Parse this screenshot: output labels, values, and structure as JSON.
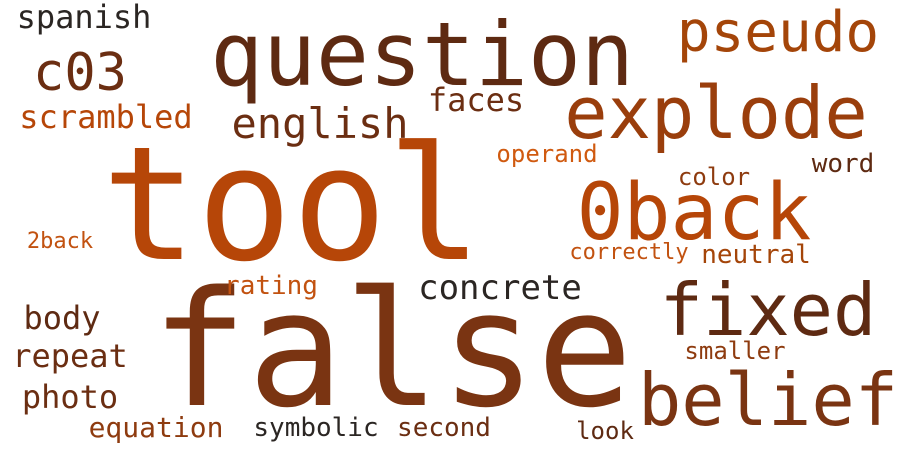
{
  "palette": {
    "background": "#ffffff",
    "dark_brown": "#5e2a12",
    "brown": "#7a3412",
    "rust": "#8e3b0f",
    "orange": "#b64608",
    "charcoal": "#2b2623"
  },
  "words": [
    {
      "text": "false",
      "color": "#7a3412"
    },
    {
      "text": "tool",
      "color": "#b64608"
    },
    {
      "text": "question",
      "color": "#5e2a12"
    },
    {
      "text": "0back",
      "color": "#b64608"
    },
    {
      "text": "explode",
      "color": "#9a3e0c"
    },
    {
      "text": "belief",
      "color": "#7a3412"
    },
    {
      "text": "fixed",
      "color": "#5e2a12"
    },
    {
      "text": "pseudo",
      "color": "#a44509"
    },
    {
      "text": "c03",
      "color": "#6b2e12"
    },
    {
      "text": "english",
      "color": "#6b2e12"
    },
    {
      "text": "concrete",
      "color": "#2b2623"
    },
    {
      "text": "spanish",
      "color": "#2b2623"
    },
    {
      "text": "scrambled",
      "color": "#b64608"
    },
    {
      "text": "faces",
      "color": "#6b2e12"
    },
    {
      "text": "repeat",
      "color": "#6b2e12"
    },
    {
      "text": "body",
      "color": "#5e2a12"
    },
    {
      "text": "photo",
      "color": "#6b2e12"
    },
    {
      "text": "equation",
      "color": "#8e3b0f"
    },
    {
      "text": "symbolic",
      "color": "#2b2623"
    },
    {
      "text": "second",
      "color": "#6b2e12"
    },
    {
      "text": "operand",
      "color": "#d05a10"
    },
    {
      "text": "color",
      "color": "#8e3b0f"
    },
    {
      "text": "word",
      "color": "#5e2a12"
    },
    {
      "text": "neutral",
      "color": "#a44509"
    },
    {
      "text": "correctly",
      "color": "#c25210"
    },
    {
      "text": "2back",
      "color": "#c25210"
    },
    {
      "text": "rating",
      "color": "#c25210"
    },
    {
      "text": "smaller",
      "color": "#8e3b0f"
    },
    {
      "text": "look",
      "color": "#5e2a12"
    }
  ]
}
